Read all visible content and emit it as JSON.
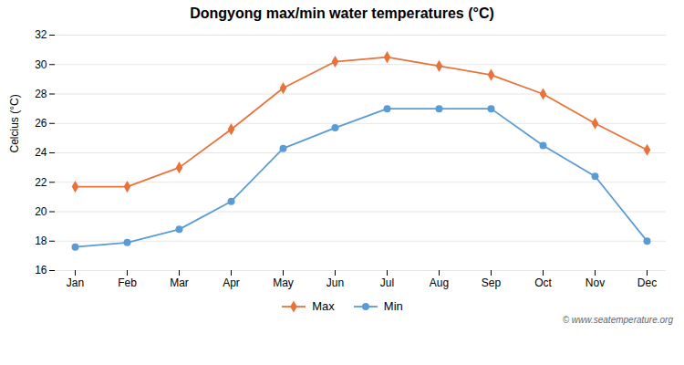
{
  "chart_data": {
    "type": "line",
    "title": "Dongyong max/min water temperatures (°C)",
    "ylabel": "Celcius (°C)",
    "categories": [
      "Jan",
      "Feb",
      "Mar",
      "Apr",
      "May",
      "Jun",
      "Jul",
      "Aug",
      "Sep",
      "Oct",
      "Nov",
      "Dec"
    ],
    "series": [
      {
        "name": "Max",
        "color": "#e8733a",
        "marker": "diamond",
        "values": [
          21.7,
          21.7,
          23.0,
          25.6,
          28.4,
          30.2,
          30.5,
          29.9,
          29.3,
          28.0,
          26.0,
          24.2
        ]
      },
      {
        "name": "Min",
        "color": "#5b9bd5",
        "marker": "circle",
        "values": [
          17.6,
          17.9,
          18.8,
          20.7,
          24.3,
          25.7,
          27.0,
          27.0,
          27.0,
          24.5,
          22.4,
          18.0
        ]
      }
    ],
    "ylim": [
      16,
      32
    ],
    "yticks": [
      16,
      18,
      20,
      22,
      24,
      26,
      28,
      30,
      32
    ],
    "grid": true,
    "legend": "bottom",
    "annotations": [
      "© www.seatemperature.org"
    ]
  }
}
